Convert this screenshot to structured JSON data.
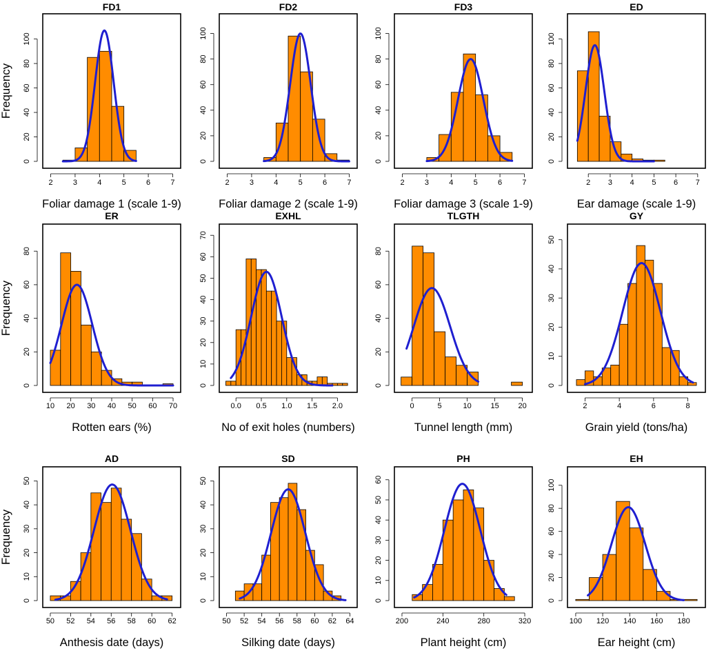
{
  "chart_data": [
    {
      "type": "bar",
      "id": "FD1",
      "title": "FD1",
      "xlabel": "Foliar damage 1 (scale 1-9)",
      "ylabel": "Frequency",
      "x_ticks": [
        2,
        3,
        4,
        5,
        6,
        7
      ],
      "y_ticks": [
        0,
        20,
        40,
        60,
        80,
        100
      ],
      "xlim": [
        1.9,
        7.1
      ],
      "ylim": [
        0,
        115
      ],
      "bin_edges": [
        2.5,
        3.0,
        3.5,
        4.0,
        4.5,
        5.0,
        5.5
      ],
      "values": [
        1,
        11,
        85,
        90,
        45,
        9
      ],
      "fit": {
        "mean": 4.2,
        "sd": 0.38,
        "peak": 107
      }
    },
    {
      "type": "bar",
      "id": "FD2",
      "title": "FD2",
      "xlabel": "Foliar damage 2 (scale 1-9)",
      "ylabel": "",
      "x_ticks": [
        2,
        3,
        4,
        5,
        6,
        7
      ],
      "y_ticks": [
        0,
        20,
        40,
        60,
        80,
        100
      ],
      "xlim": [
        1.9,
        7.1
      ],
      "ylim": [
        0,
        110
      ],
      "bin_edges": [
        3.5,
        4.0,
        4.5,
        5.0,
        5.5,
        6.0,
        6.5,
        7.0
      ],
      "values": [
        3,
        30,
        98,
        70,
        33,
        6,
        1
      ],
      "fit": {
        "mean": 5.0,
        "sd": 0.42,
        "peak": 100
      }
    },
    {
      "type": "bar",
      "id": "FD3",
      "title": "FD3",
      "xlabel": "Foliar damage 3 (scale 1-9)",
      "ylabel": "",
      "x_ticks": [
        2,
        3,
        4,
        5,
        6,
        7
      ],
      "y_ticks": [
        0,
        20,
        40,
        60,
        80,
        100
      ],
      "xlim": [
        1.9,
        7.1
      ],
      "ylim": [
        0,
        110
      ],
      "bin_edges": [
        3.0,
        3.5,
        4.0,
        4.5,
        5.0,
        5.5,
        6.0,
        6.5
      ],
      "values": [
        3,
        21,
        54,
        84,
        52,
        20,
        7
      ],
      "fit": {
        "mean": 4.8,
        "sd": 0.52,
        "peak": 80
      }
    },
    {
      "type": "bar",
      "id": "ED",
      "title": "ED",
      "xlabel": "Ear damage (scale 1-9)",
      "ylabel": "",
      "x_ticks": [
        2,
        3,
        4,
        5,
        6,
        7
      ],
      "y_ticks": [
        0,
        20,
        40,
        60,
        80,
        100
      ],
      "xlim": [
        1.3,
        7.1
      ],
      "ylim": [
        0,
        115
      ],
      "bin_edges": [
        1.5,
        2.0,
        2.5,
        3.0,
        3.5,
        4.0,
        4.5,
        5.0,
        5.5
      ],
      "values": [
        74,
        106,
        37,
        16,
        6,
        2,
        1,
        1
      ],
      "fit": {
        "mean": 2.3,
        "sd": 0.43,
        "peak": 95,
        "xmin": 1.5,
        "xmax": 5.0
      }
    },
    {
      "type": "bar",
      "id": "ER",
      "title": "ER",
      "xlabel": "Rotten ears (%)",
      "ylabel": "Frequency",
      "x_ticks": [
        10,
        20,
        30,
        40,
        50,
        60,
        70
      ],
      "y_ticks": [
        0,
        20,
        40,
        60,
        80
      ],
      "xlim": [
        9,
        71
      ],
      "ylim": [
        0,
        92
      ],
      "bin_edges": [
        10,
        15,
        20,
        25,
        30,
        35,
        40,
        45,
        50,
        55,
        60,
        65,
        70
      ],
      "values": [
        21,
        79,
        68,
        36,
        20,
        9,
        4,
        2,
        2,
        0,
        0,
        1
      ],
      "fit": {
        "mean": 23,
        "sd": 7.5,
        "peak": 60,
        "xmin": 10,
        "xmax": 70
      }
    },
    {
      "type": "bar",
      "id": "EXHL",
      "title": "EXHL",
      "xlabel": "No of exit holes (numbers)",
      "ylabel": "",
      "x_ticks": [
        0.0,
        0.5,
        1.0,
        1.5,
        2.0
      ],
      "tick_labels": [
        "0.0",
        "0.5",
        "1.0",
        "1.5",
        "2.0"
      ],
      "y_ticks": [
        0,
        10,
        20,
        30,
        40,
        50,
        60,
        70
      ],
      "xlim": [
        -0.22,
        2.28
      ],
      "ylim": [
        0,
        72
      ],
      "bin_edges": [
        -0.2,
        -0.1,
        0.0,
        0.1,
        0.2,
        0.3,
        0.4,
        0.5,
        0.6,
        0.7,
        0.8,
        0.9,
        1.0,
        1.1,
        1.2,
        1.3,
        1.4,
        1.5,
        1.6,
        1.7,
        1.8,
        1.9,
        2.0,
        2.1,
        2.2
      ],
      "values": [
        2,
        2,
        26,
        26,
        59,
        59,
        54,
        54,
        44,
        44,
        30,
        30,
        13,
        13,
        5,
        5,
        2,
        2,
        4,
        4,
        1,
        1,
        1,
        1
      ],
      "fit": {
        "mean": 0.6,
        "sd": 0.3,
        "peak": 53,
        "xmin": -0.1,
        "xmax": 1.9
      }
    },
    {
      "type": "bar",
      "id": "TLGTH",
      "title": "TLGTH",
      "xlabel": "Tunnel length (mm)",
      "ylabel": "",
      "x_ticks": [
        0,
        5,
        10,
        15,
        20
      ],
      "y_ticks": [
        0,
        20,
        40,
        60,
        80
      ],
      "xlim": [
        -2.2,
        20.8
      ],
      "ylim": [
        0,
        92
      ],
      "bin_edges": [
        -2,
        0,
        2,
        4,
        6,
        8,
        10,
        12,
        14,
        16,
        18,
        20
      ],
      "values": [
        5,
        83,
        79,
        32,
        17,
        12,
        8,
        0,
        0,
        0,
        2
      ],
      "fit": {
        "mean": 3.6,
        "sd": 3.3,
        "peak": 58,
        "xmin": -1,
        "xmax": 12
      }
    },
    {
      "type": "bar",
      "id": "GY",
      "title": "GY",
      "xlabel": "Grain yield (tons/ha)",
      "ylabel": "",
      "x_ticks": [
        2,
        4,
        6,
        8
      ],
      "y_ticks": [
        0,
        10,
        20,
        30,
        40,
        50
      ],
      "xlim": [
        1.3,
        8.7
      ],
      "ylim": [
        0,
        53
      ],
      "bin_edges": [
        1.5,
        2.0,
        2.5,
        3.0,
        3.5,
        4.0,
        4.5,
        5.0,
        5.5,
        6.0,
        6.5,
        7.0,
        7.5,
        8.0,
        8.5
      ],
      "values": [
        2,
        5,
        3,
        6,
        7,
        21,
        35,
        48,
        43,
        35,
        13,
        12,
        3,
        1
      ],
      "fit": {
        "mean": 5.3,
        "sd": 1.1,
        "peak": 42,
        "xmin": 2,
        "xmax": 8.3
      }
    },
    {
      "type": "bar",
      "id": "AD",
      "title": "AD",
      "xlabel": "Anthesis date (days)",
      "ylabel": "Frequency",
      "x_ticks": [
        50,
        52,
        54,
        56,
        58,
        60,
        62
      ],
      "y_ticks": [
        0,
        10,
        20,
        30,
        40,
        50
      ],
      "xlim": [
        49.8,
        62.3
      ],
      "ylim": [
        0,
        53
      ],
      "bin_edges": [
        50,
        51,
        52,
        53,
        54,
        55,
        56,
        57,
        58,
        59,
        60,
        61,
        62
      ],
      "values": [
        2,
        2,
        8,
        20,
        45,
        41,
        47,
        34,
        28,
        9,
        2,
        2
      ],
      "fit": {
        "mean": 56.1,
        "sd": 1.8,
        "peak": 48.5,
        "xmin": 50.5,
        "xmax": 61.5
      }
    },
    {
      "type": "bar",
      "id": "SD",
      "title": "SD",
      "xlabel": "Silking date (days)",
      "ylabel": "",
      "x_ticks": [
        50,
        52,
        54,
        56,
        58,
        60,
        62,
        64
      ],
      "y_ticks": [
        0,
        10,
        20,
        30,
        40,
        50
      ],
      "xlim": [
        49.8,
        64.2
      ],
      "ylim": [
        0,
        53
      ],
      "bin_edges": [
        51,
        52,
        53,
        54,
        55,
        56,
        57,
        58,
        59,
        60,
        61,
        62,
        63
      ],
      "values": [
        4,
        7,
        7,
        19,
        41,
        43,
        49,
        38,
        21,
        15,
        4,
        2
      ],
      "fit": {
        "mean": 57.0,
        "sd": 1.95,
        "peak": 46.5,
        "xmin": 51.5,
        "xmax": 63.5
      }
    },
    {
      "type": "bar",
      "id": "PH",
      "title": "PH",
      "xlabel": "Plant height (cm)",
      "ylabel": "",
      "x_ticks": [
        200,
        240,
        280,
        320
      ],
      "y_ticks": [
        0,
        10,
        20,
        30,
        40,
        50,
        60
      ],
      "xlim": [
        198,
        322
      ],
      "ylim": [
        0,
        63
      ],
      "bin_edges": [
        210,
        220,
        230,
        240,
        250,
        260,
        270,
        280,
        290,
        300,
        310
      ],
      "values": [
        3,
        8,
        18,
        40,
        50,
        55,
        46,
        20,
        6,
        2
      ],
      "fit": {
        "mean": 259,
        "sd": 17.5,
        "peak": 58,
        "xmin": 212,
        "xmax": 302
      }
    },
    {
      "type": "bar",
      "id": "EH",
      "title": "EH",
      "xlabel": "Ear height (cm)",
      "ylabel": "",
      "x_ticks": [
        100,
        120,
        140,
        160,
        180
      ],
      "y_ticks": [
        0,
        20,
        40,
        60,
        80,
        100
      ],
      "xlim": [
        98,
        192
      ],
      "ylim": [
        0,
        110
      ],
      "bin_edges": [
        100,
        110,
        120,
        130,
        140,
        150,
        160,
        170,
        180,
        190
      ],
      "values": [
        1,
        20,
        40,
        86,
        63,
        27,
        8,
        1,
        1
      ],
      "fit": {
        "mean": 139,
        "sd": 12.5,
        "peak": 81,
        "xmin": 109,
        "xmax": 180
      }
    }
  ]
}
